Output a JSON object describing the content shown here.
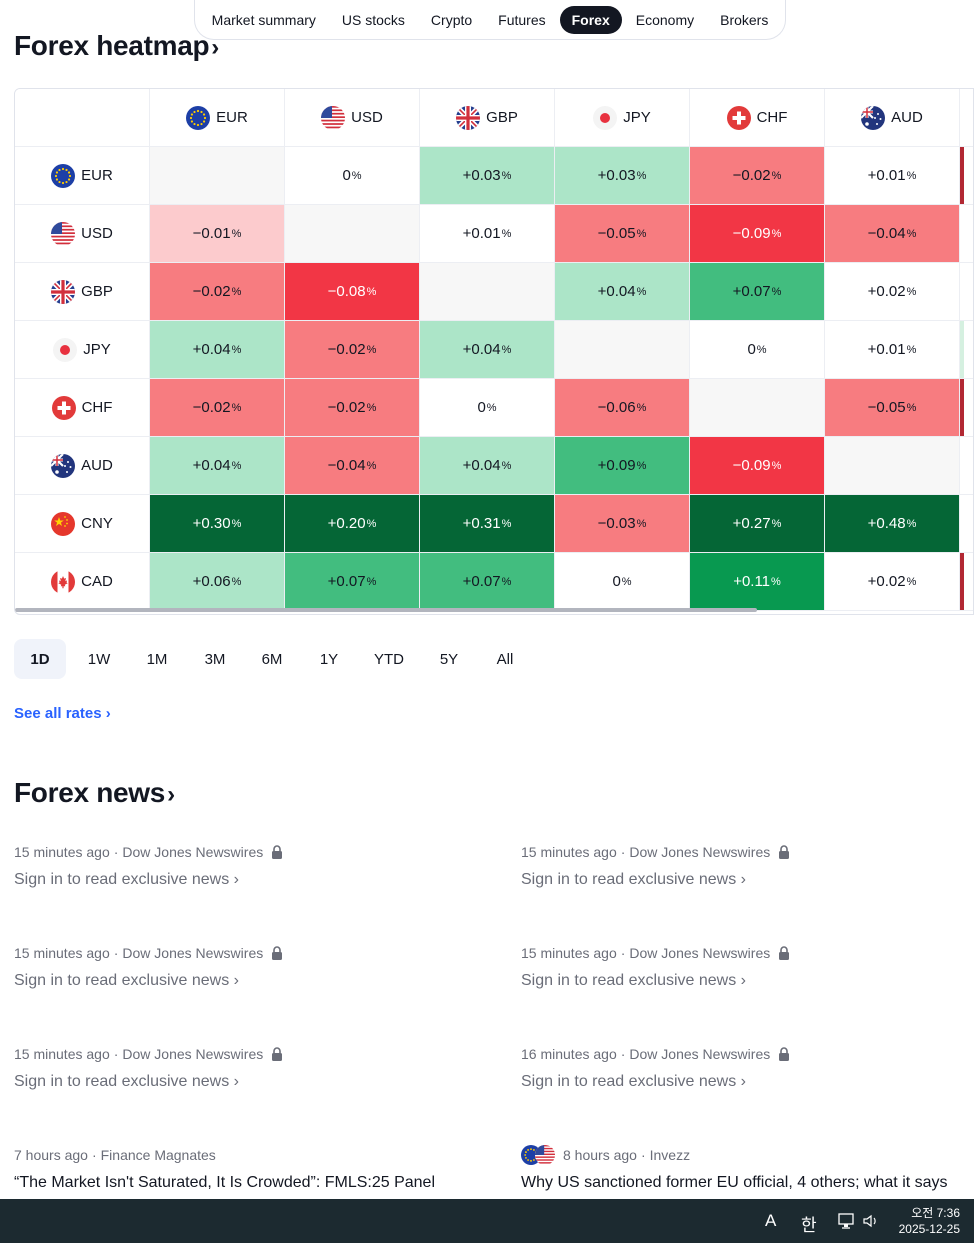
{
  "nav": {
    "items": [
      "Market summary",
      "US stocks",
      "Crypto",
      "Futures",
      "Forex",
      "Economy",
      "Brokers"
    ],
    "active": "Forex"
  },
  "heatmap": {
    "title": "Forex heatmap",
    "columns": [
      "EUR",
      "USD",
      "GBP",
      "JPY",
      "CHF",
      "AUD"
    ],
    "rows": [
      {
        "currency": "EUR",
        "cells": [
          "",
          "0",
          "+0.03",
          "+0.03",
          "−0.02",
          "+0.01"
        ]
      },
      {
        "currency": "USD",
        "cells": [
          "−0.01",
          "",
          "+0.01",
          "−0.05",
          "−0.09",
          "−0.04"
        ]
      },
      {
        "currency": "GBP",
        "cells": [
          "−0.02",
          "−0.08",
          "",
          "+0.04",
          "+0.07",
          "+0.02"
        ]
      },
      {
        "currency": "JPY",
        "cells": [
          "+0.04",
          "−0.02",
          "+0.04",
          "",
          "0",
          "+0.01"
        ]
      },
      {
        "currency": "CHF",
        "cells": [
          "−0.02",
          "−0.02",
          "0",
          "−0.06",
          "",
          "−0.05"
        ]
      },
      {
        "currency": "AUD",
        "cells": [
          "+0.04",
          "−0.04",
          "+0.04",
          "+0.09",
          "−0.09",
          ""
        ]
      },
      {
        "currency": "CNY",
        "cells": [
          "+0.30",
          "+0.20",
          "+0.31",
          "−0.03",
          "+0.27",
          "+0.48"
        ]
      },
      {
        "currency": "CAD",
        "cells": [
          "+0.06",
          "+0.07",
          "+0.07",
          "0",
          "+0.11",
          "+0.02"
        ]
      }
    ],
    "percent_sign": "%",
    "edge_colors": [
      "#b22833",
      "",
      "",
      "#d5f0e0",
      "#b22833",
      "",
      "",
      "#b22833"
    ],
    "colors": {
      "neutral": "#ffffff",
      "diag": "#f7f7f7",
      "light_red": "#fccbcd",
      "red": "#f77c80",
      "strong_red": "#f23645",
      "light_green": "#ace5c8",
      "green": "#42bd7f",
      "strong_green": "#089950",
      "dark_green": "#056636"
    },
    "cell_tones": [
      [
        "diag",
        "neutral",
        "light_green",
        "light_green",
        "red",
        "neutral"
      ],
      [
        "light_red",
        "diag",
        "neutral",
        "red",
        "strong_red",
        "red"
      ],
      [
        "red",
        "strong_red",
        "diag",
        "light_green",
        "green",
        "neutral"
      ],
      [
        "light_green",
        "red",
        "light_green",
        "diag",
        "neutral",
        "neutral"
      ],
      [
        "red",
        "red",
        "neutral",
        "red",
        "diag",
        "red"
      ],
      [
        "light_green",
        "red",
        "light_green",
        "green",
        "strong_red",
        "diag"
      ],
      [
        "dark_green",
        "dark_green",
        "dark_green",
        "red",
        "dark_green",
        "dark_green"
      ],
      [
        "light_green",
        "green",
        "green",
        "neutral",
        "strong_green",
        "neutral"
      ]
    ]
  },
  "ranges": {
    "items": [
      "1D",
      "1W",
      "1M",
      "3M",
      "6M",
      "1Y",
      "YTD",
      "5Y",
      "All"
    ],
    "active": "1D"
  },
  "see_all": "See all rates",
  "news": {
    "title": "Forex news",
    "items": [
      {
        "time": "15 minutes ago",
        "source": "Dow Jones Newswires",
        "locked": true,
        "title": "Sign in to read exclusive news"
      },
      {
        "time": "15 minutes ago",
        "source": "Dow Jones Newswires",
        "locked": true,
        "title": "Sign in to read exclusive news"
      },
      {
        "time": "15 minutes ago",
        "source": "Dow Jones Newswires",
        "locked": true,
        "title": "Sign in to read exclusive news"
      },
      {
        "time": "15 minutes ago",
        "source": "Dow Jones Newswires",
        "locked": true,
        "title": "Sign in to read exclusive news"
      },
      {
        "time": "15 minutes ago",
        "source": "Dow Jones Newswires",
        "locked": true,
        "title": "Sign in to read exclusive news"
      },
      {
        "time": "16 minutes ago",
        "source": "Dow Jones Newswires",
        "locked": true,
        "title": "Sign in to read exclusive news"
      },
      {
        "time": "7 hours ago",
        "source": "Finance Magnates",
        "locked": false,
        "title": "“The Market Isn't Saturated, It Is Crowded”: FMLS:25 Panel"
      },
      {
        "time": "8 hours ago",
        "source": "Invezz",
        "locked": false,
        "title": "Why US sanctioned former EU official, 4 others; what it says",
        "flags": [
          "EUR",
          "USD"
        ]
      }
    ],
    "separator": "·"
  },
  "taskbar": {
    "ime_a": "A",
    "ime_han": "한",
    "time": "오전 7:36",
    "date": "2025-12-25"
  }
}
